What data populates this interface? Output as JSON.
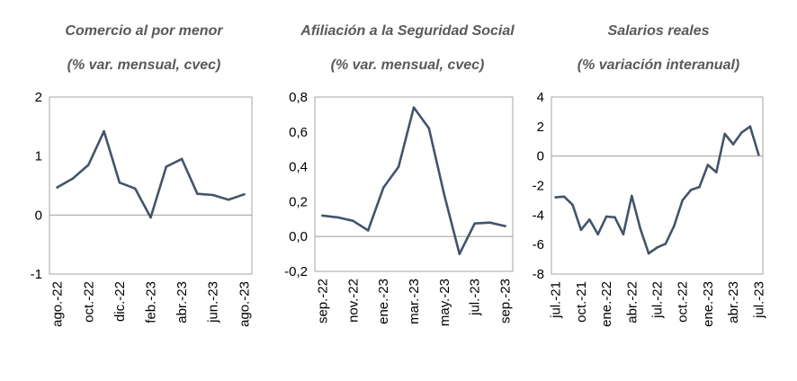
{
  "colors": {
    "line": "#44546A",
    "axis": "#A6A6A6",
    "title": "#595959"
  },
  "chart_data": [
    {
      "type": "line",
      "title": "Comercio al por menor",
      "subtitle": "(% var. mensual, cvec)",
      "categories": [
        "ago.-22",
        "sep.-22",
        "oct.-22",
        "nov.-22",
        "dic.-22",
        "ene.-23",
        "feb.-23",
        "mar.-23",
        "abr.-23",
        "may.-23",
        "jun.-23",
        "jul.-23",
        "ago.-23"
      ],
      "x_tick_labels": [
        "ago.-22",
        "oct.-22",
        "dic.-22",
        "feb.-23",
        "abr.-23",
        "jun.-23",
        "ago.-23"
      ],
      "values": [
        0.47,
        0.62,
        0.85,
        1.42,
        0.55,
        0.45,
        -0.04,
        0.82,
        0.95,
        0.36,
        0.34,
        0.26,
        0.35
      ],
      "ylim": [
        -1,
        2
      ],
      "y_ticks": [
        -1,
        0,
        1,
        2
      ],
      "y_tick_labels": [
        "-1",
        "0",
        "1",
        "2"
      ],
      "baseline": 0
    },
    {
      "type": "line",
      "title": "Afiliación a la Seguridad Social",
      "subtitle": "(% var. mensual, cvec)",
      "categories": [
        "sep.-22",
        "oct.-22",
        "nov.-22",
        "dic.-22",
        "ene.-23",
        "feb.-23",
        "mar.-23",
        "abr.-23",
        "may.-23",
        "jun.-23",
        "jul.-23",
        "ago.-23",
        "sep.-23"
      ],
      "x_tick_labels": [
        "sep.-22",
        "nov.-22",
        "ene.-23",
        "mar.-23",
        "may.-23",
        "jul.-23",
        "sep.-23"
      ],
      "values": [
        0.12,
        0.11,
        0.09,
        0.035,
        0.28,
        0.4,
        0.74,
        0.62,
        0.24,
        -0.1,
        0.075,
        0.08,
        0.06
      ],
      "ylim": [
        -0.2,
        0.8
      ],
      "y_ticks": [
        -0.2,
        0,
        0.2,
        0.4,
        0.6,
        0.8
      ],
      "y_tick_labels": [
        "-0,2",
        "0,0",
        "0,2",
        "0,4",
        "0,6",
        "0,8"
      ],
      "baseline": 0
    },
    {
      "type": "line",
      "title": "Salarios reales",
      "subtitle": "(% variación interanual)",
      "categories": [
        "jul.-21",
        "ago.-21",
        "sep.-21",
        "oct.-21",
        "nov.-21",
        "dic.-21",
        "ene.-22",
        "feb.-22",
        "mar.-22",
        "abr.-22",
        "may.-22",
        "jun.-22",
        "jul.-22",
        "ago.-22",
        "sep.-22",
        "oct.-22",
        "nov.-22",
        "dic.-22",
        "ene.-23",
        "feb.-23",
        "mar.-23",
        "abr.-23",
        "may.-23",
        "jun.-23",
        "jul.-23"
      ],
      "x_tick_labels": [
        "jul.-21",
        "oct.-21",
        "ene.-22",
        "abr.-22",
        "jul.-22",
        "oct.-22",
        "ene.-23",
        "abr.-23",
        "jul.-23"
      ],
      "values": [
        -2.8,
        -2.75,
        -3.3,
        -5.0,
        -4.3,
        -5.3,
        -4.1,
        -4.15,
        -5.3,
        -2.7,
        -4.9,
        -6.6,
        -6.2,
        -5.95,
        -4.75,
        -3.0,
        -2.3,
        -2.1,
        -0.6,
        -1.1,
        1.5,
        0.8,
        1.6,
        2.0,
        0.1
      ],
      "ylim": [
        -8,
        4
      ],
      "y_ticks": [
        -8,
        -6,
        -4,
        -2,
        0,
        2,
        4
      ],
      "y_tick_labels": [
        "-8",
        "-6",
        "-4",
        "-2",
        "0",
        "2",
        "4"
      ],
      "baseline": 0
    }
  ]
}
